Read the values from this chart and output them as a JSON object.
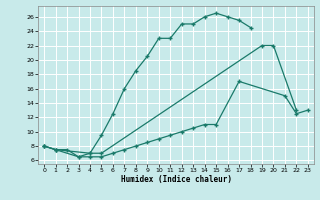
{
  "xlabel": "Humidex (Indice chaleur)",
  "bg_color": "#c8eaea",
  "grid_color": "#ffffff",
  "line_color": "#1a7a6a",
  "xlim": [
    -0.5,
    23.5
  ],
  "ylim": [
    5.5,
    27.5
  ],
  "xticks": [
    0,
    1,
    2,
    3,
    4,
    5,
    6,
    7,
    8,
    9,
    10,
    11,
    12,
    13,
    14,
    15,
    16,
    17,
    18,
    19,
    20,
    21,
    22,
    23
  ],
  "yticks": [
    6,
    8,
    10,
    12,
    14,
    16,
    18,
    20,
    22,
    24,
    26
  ],
  "curve1_x": [
    0,
    1,
    2,
    3,
    4,
    5,
    6,
    7,
    8,
    9,
    10,
    11,
    12,
    13,
    14,
    15,
    16,
    17,
    18
  ],
  "curve1_y": [
    8,
    7.5,
    7.5,
    6.5,
    7,
    9.5,
    12.5,
    16,
    18.5,
    20.5,
    23,
    23,
    25,
    25,
    26,
    26.5,
    26,
    25.5,
    24.5
  ],
  "curve2_x": [
    0,
    1,
    4,
    5,
    19,
    20,
    22
  ],
  "curve2_y": [
    8,
    7.5,
    7,
    7,
    22,
    22,
    13
  ],
  "curve3_x": [
    0,
    1,
    3,
    4,
    5,
    6,
    7,
    8,
    9,
    10,
    11,
    12,
    13,
    14,
    15,
    17,
    21,
    22,
    23
  ],
  "curve3_y": [
    8,
    7.5,
    6.5,
    6.5,
    6.5,
    7,
    7.5,
    8,
    8.5,
    9,
    9.5,
    10,
    10.5,
    11,
    11,
    17,
    15,
    12.5,
    13
  ]
}
